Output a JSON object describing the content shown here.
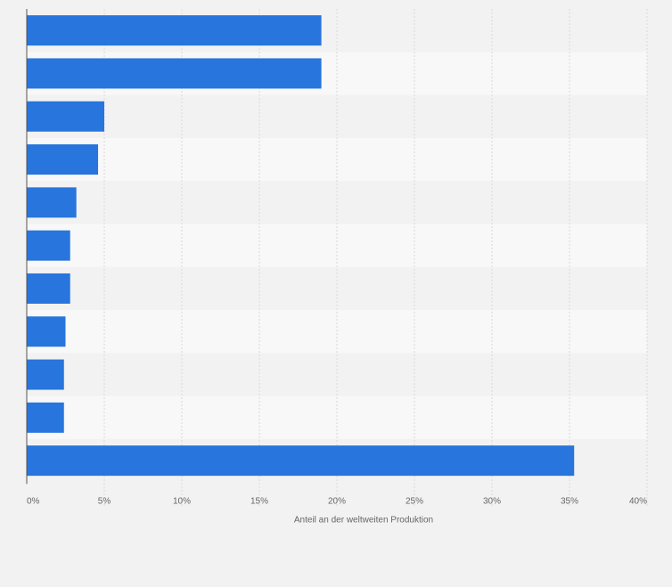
{
  "chart_data": {
    "type": "bar",
    "orientation": "horizontal",
    "categories": [
      "",
      "",
      "",
      "",
      "",
      "",
      "",
      "",
      "",
      "",
      ""
    ],
    "values": [
      19.0,
      19.0,
      5.0,
      4.6,
      3.2,
      2.8,
      2.8,
      2.5,
      2.4,
      2.4,
      35.3
    ],
    "xlabel": "Anteil an der weltweiten Produktion",
    "ylabel": "",
    "xlim": [
      0,
      40
    ],
    "tick_values": [
      0,
      5,
      10,
      15,
      20,
      25,
      30,
      35,
      40
    ],
    "tick_labels": [
      "0%",
      "5%",
      "10%",
      "15%",
      "20%",
      "25%",
      "30%",
      "35%",
      "40%"
    ],
    "grid": true,
    "legend": "none"
  },
  "colors": {
    "bar": "#2775dd",
    "background": "#f2f2f2",
    "band_dark": "#f2f2f2",
    "band_light": "#f8f8f8",
    "grid": "#d9d9d9",
    "axis": "#555555"
  }
}
